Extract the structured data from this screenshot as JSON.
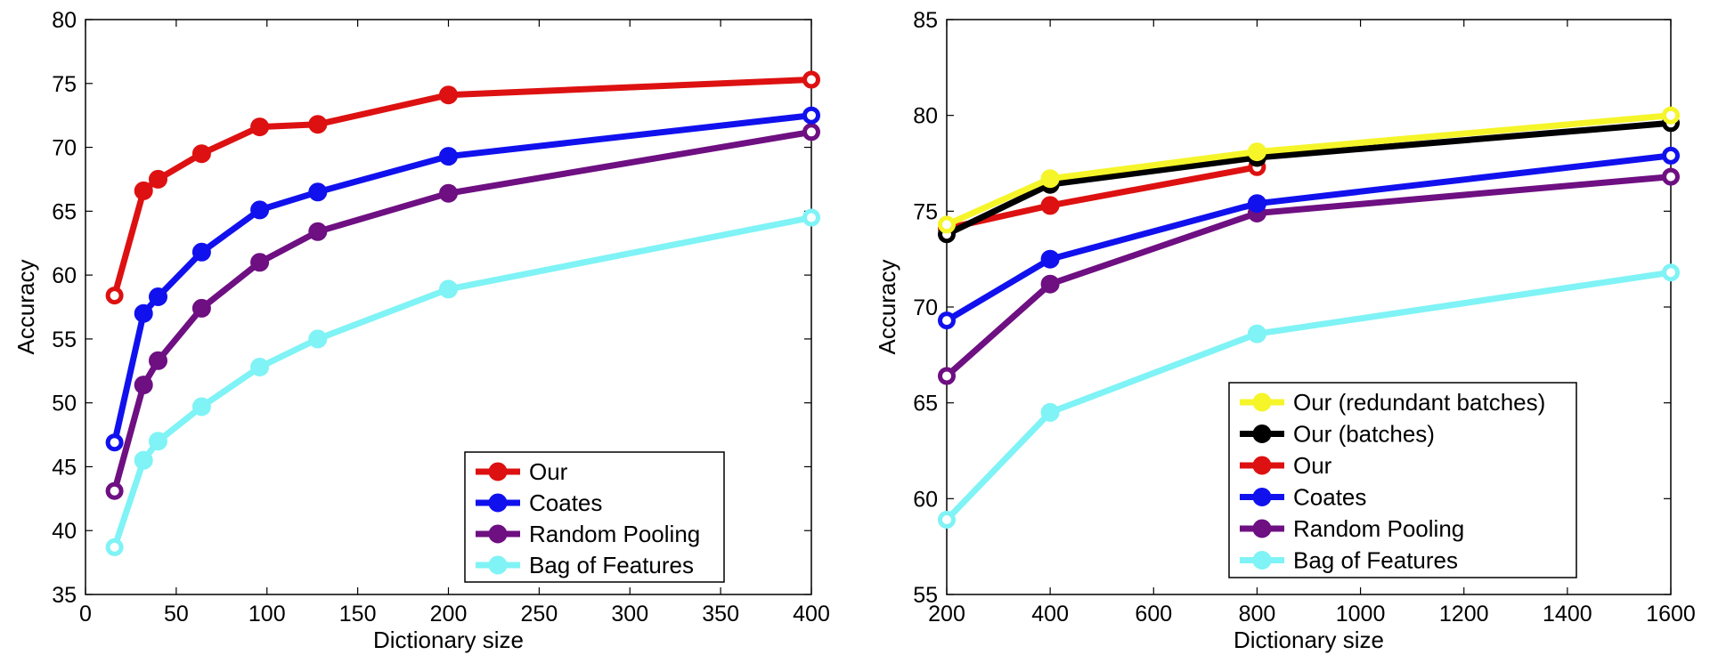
{
  "chart_data": [
    {
      "type": "line",
      "title": "",
      "xlabel": "Dictionary size",
      "ylabel": "Accuracy",
      "xlim": [
        0,
        400
      ],
      "ylim": [
        35,
        80
      ],
      "xticks": [
        "0",
        "50",
        "100",
        "150",
        "200",
        "250",
        "300",
        "350",
        "400"
      ],
      "yticks": [
        "35",
        "40",
        "45",
        "50",
        "55",
        "60",
        "65",
        "70",
        "75",
        "80"
      ],
      "legend_position": "bottom-right",
      "grid": false,
      "series": [
        {
          "name": "Our",
          "color": "#dd1111",
          "x": [
            16,
            32,
            40,
            64,
            96,
            128,
            200,
            400
          ],
          "y": [
            58.4,
            66.6,
            67.5,
            69.5,
            71.6,
            71.8,
            74.1,
            75.3
          ]
        },
        {
          "name": "Coates",
          "color": "#1111ee",
          "x": [
            16,
            32,
            40,
            64,
            96,
            128,
            200,
            400
          ],
          "y": [
            46.9,
            57.0,
            58.3,
            61.8,
            65.1,
            66.5,
            69.3,
            72.5
          ]
        },
        {
          "name": "Random Pooling",
          "color": "#6e0f82",
          "x": [
            16,
            32,
            40,
            64,
            96,
            128,
            200,
            400
          ],
          "y": [
            43.1,
            51.4,
            53.3,
            57.4,
            61.0,
            63.4,
            66.4,
            71.2
          ]
        },
        {
          "name": "Bag of Features",
          "color": "#7ff3f5",
          "x": [
            16,
            32,
            40,
            64,
            96,
            128,
            200,
            400
          ],
          "y": [
            38.7,
            45.5,
            47.0,
            49.7,
            52.8,
            55.0,
            58.9,
            64.5
          ]
        }
      ]
    },
    {
      "type": "line",
      "title": "",
      "xlabel": "Dictionary size",
      "ylabel": "Accuracy",
      "xlim": [
        200,
        1600
      ],
      "ylim": [
        55,
        85
      ],
      "xticks": [
        "200",
        "400",
        "600",
        "800",
        "1000",
        "1200",
        "1400",
        "1600"
      ],
      "yticks": [
        "55",
        "60",
        "65",
        "70",
        "75",
        "80",
        "85"
      ],
      "legend_position": "bottom-right",
      "grid": false,
      "series": [
        {
          "name": "Our (redundant batches)",
          "color": "#f5f52a",
          "x": [
            200,
            400,
            800,
            1600
          ],
          "y": [
            74.3,
            76.7,
            78.1,
            80.0
          ]
        },
        {
          "name": "Our (batches)",
          "color": "#000000",
          "x": [
            200,
            400,
            800,
            1600
          ],
          "y": [
            73.8,
            76.4,
            77.8,
            79.6
          ]
        },
        {
          "name": "Our",
          "color": "#dd1111",
          "x": [
            200,
            400,
            800
          ],
          "y": [
            74.1,
            75.3,
            77.3
          ]
        },
        {
          "name": "Coates",
          "color": "#1111ee",
          "x": [
            200,
            400,
            800,
            1600
          ],
          "y": [
            69.3,
            72.5,
            75.4,
            77.9
          ]
        },
        {
          "name": "Random Pooling",
          "color": "#6e0f82",
          "x": [
            200,
            400,
            800,
            1600
          ],
          "y": [
            66.4,
            71.2,
            74.9,
            76.8
          ]
        },
        {
          "name": "Bag of Features",
          "color": "#7ff3f5",
          "x": [
            200,
            400,
            800,
            1600
          ],
          "y": [
            58.9,
            64.5,
            68.6,
            71.8
          ]
        }
      ]
    }
  ]
}
